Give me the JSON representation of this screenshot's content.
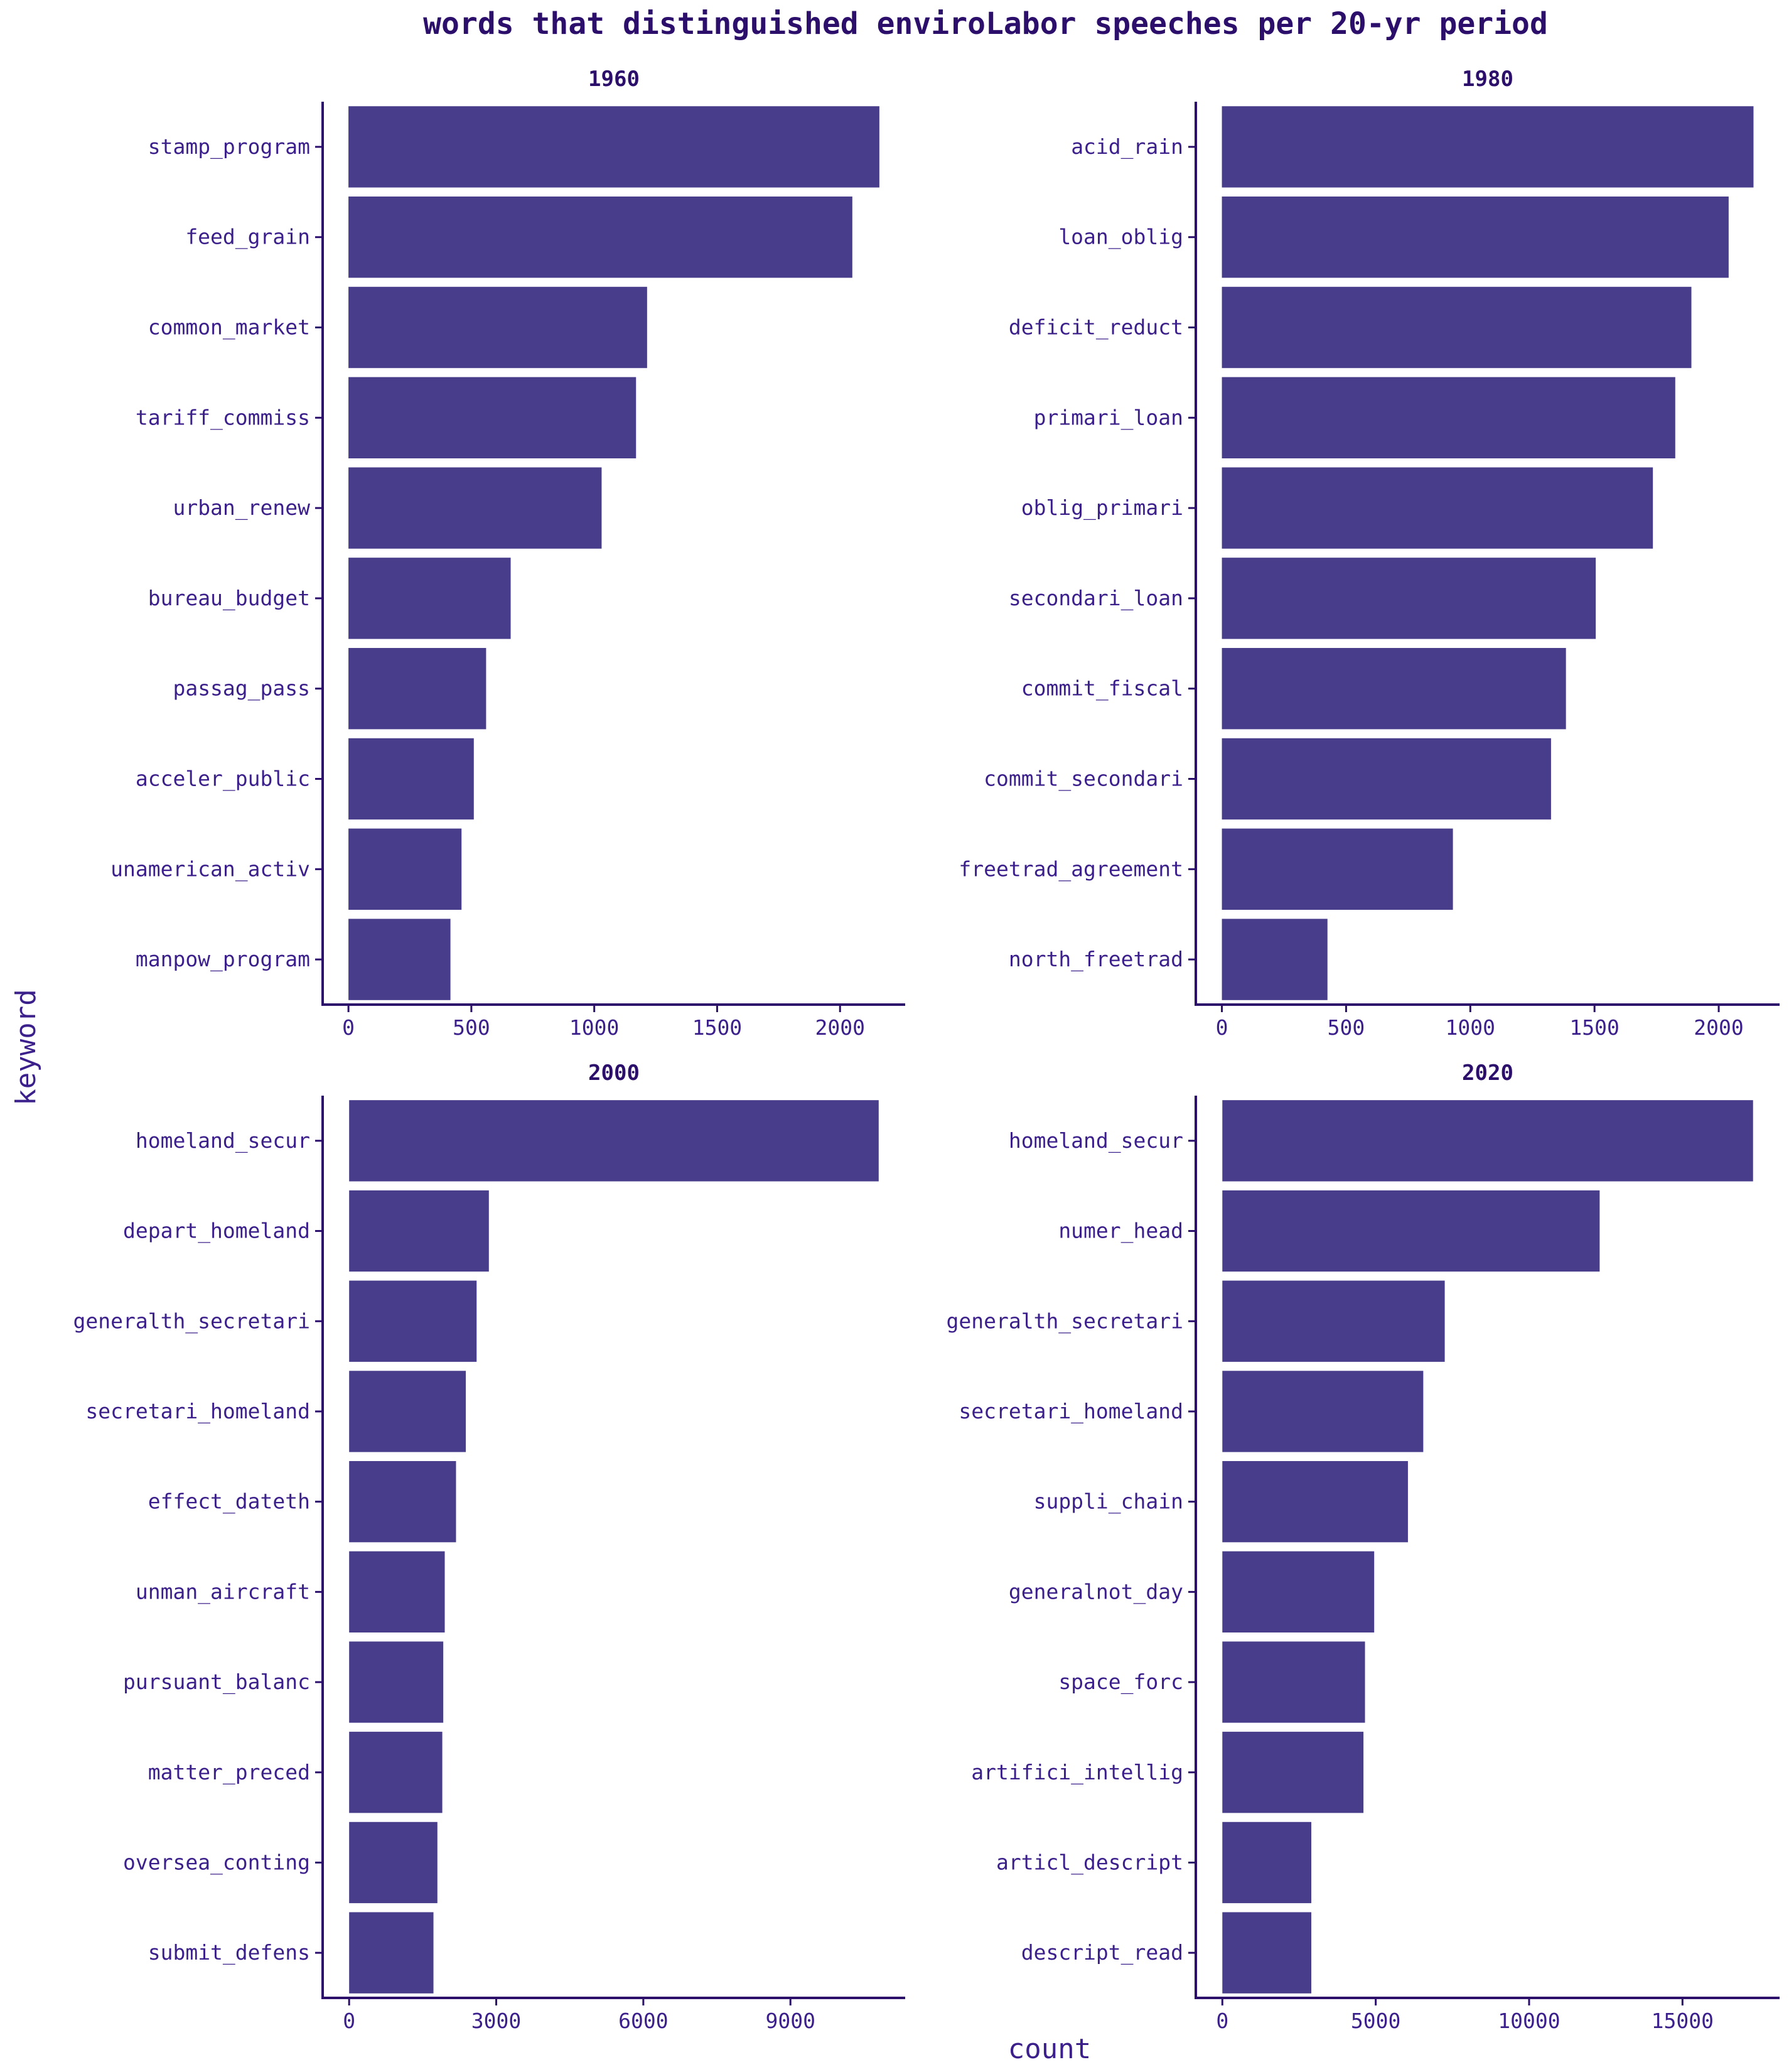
{
  "chart_data": {
    "type": "bar",
    "orientation": "horizontal",
    "title": "words that distinguished enviroLabor speeches per 20-yr period",
    "xlabel": "count",
    "ylabel": "keyword",
    "grid": false,
    "legend": "none",
    "colors": {
      "bar": "#483d8b",
      "text": "#3b1f8a",
      "title": "#2c0f6b",
      "axis": "#2c0f6b"
    },
    "panels": [
      {
        "facet": "1960",
        "categories": [
          "stamp_program",
          "feed_grain",
          "common_market",
          "tariff_commiss",
          "urban_renew",
          "bureau_budget",
          "passag_pass",
          "acceler_public",
          "unamerican_activ",
          "manpow_program"
        ],
        "values": [
          2160,
          2050,
          1215,
          1170,
          1030,
          660,
          560,
          510,
          460,
          415
        ],
        "xlim": [
          -105,
          2265
        ],
        "xticks": [
          "0",
          "500",
          "1000",
          "1500",
          "2000"
        ]
      },
      {
        "facet": "1980",
        "categories": [
          "acid_rain",
          "loan_oblig",
          "deficit_reduct",
          "primari_loan",
          "oblig_primari",
          "secondari_loan",
          "commit_fiscal",
          "commit_secondari",
          "freetrad_agreement",
          "north_freetrad"
        ],
        "values": [
          2140,
          2040,
          1890,
          1825,
          1735,
          1505,
          1385,
          1325,
          930,
          425
        ],
        "xlim": [
          -105,
          2245
        ],
        "xticks": [
          "0",
          "500",
          "1000",
          "1500",
          "2000"
        ]
      },
      {
        "facet": "2000",
        "categories": [
          "homeland_secur",
          "depart_homeland",
          "generalth_secretari",
          "secretari_homeland",
          "effect_dateth",
          "unman_aircraft",
          "pursuant_balanc",
          "matter_preced",
          "oversea_conting",
          "submit_defens"
        ],
        "values": [
          10800,
          2850,
          2600,
          2380,
          2180,
          1950,
          1920,
          1900,
          1800,
          1720
        ],
        "xlim": [
          -540,
          11340
        ],
        "xticks": [
          "0",
          "3000",
          "6000",
          "9000"
        ]
      },
      {
        "facet": "2020",
        "categories": [
          "homeland_secur",
          "numer_head",
          "generalth_secretari",
          "secretari_homeland",
          "suppli_chain",
          "generalnot_day",
          "space_forc",
          "artifici_intellig",
          "articl_descript",
          "descript_read"
        ],
        "values": [
          17300,
          12300,
          7250,
          6550,
          6050,
          4950,
          4650,
          4600,
          2900,
          2900
        ],
        "xlim": [
          -865,
          18165
        ],
        "xticks": [
          "0",
          "5000",
          "10000",
          "15000"
        ]
      }
    ]
  }
}
